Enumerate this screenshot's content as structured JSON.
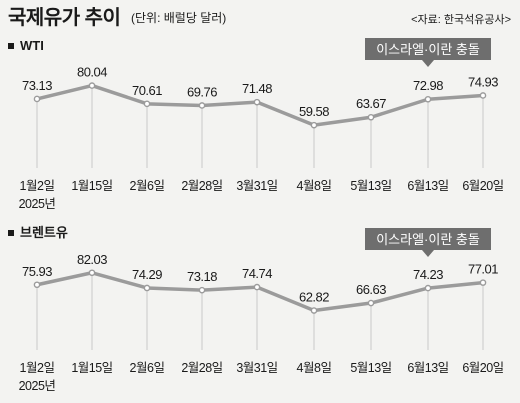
{
  "header": {
    "title": "국제유가 추이",
    "unit": "(단위: 배럴당 달러)",
    "source": "<자료: 한국석유공사>"
  },
  "chart_data": [
    {
      "type": "line",
      "title": "WTI",
      "categories": [
        "1월2일",
        "1월15일",
        "2월6일",
        "2월28일",
        "3월31일",
        "4월8일",
        "5월13일",
        "6월13일",
        "6월20일"
      ],
      "year_label": "2025년",
      "values": [
        73.13,
        80.04,
        70.61,
        69.76,
        71.48,
        59.58,
        63.67,
        72.98,
        74.93
      ],
      "value_labels": [
        "73.13",
        "80.04",
        "70.61",
        "69.76",
        "71.48",
        "59.58",
        "63.67",
        "72.98",
        "74.93"
      ],
      "ylim": [
        55,
        85
      ],
      "annotation": {
        "text": "이스라엘·이란 충돌",
        "category": "6월13일"
      },
      "series_color": "#9b9b9b",
      "drop_line_color": "#d6d6d6"
    },
    {
      "type": "line",
      "title": "브렌트유",
      "categories": [
        "1월2일",
        "1월15일",
        "2월6일",
        "2월28일",
        "3월31일",
        "4월8일",
        "5월13일",
        "6월13일",
        "6월20일"
      ],
      "year_label": "2025년",
      "values": [
        75.93,
        82.03,
        74.29,
        73.18,
        74.74,
        62.82,
        66.63,
        74.23,
        77.01
      ],
      "value_labels": [
        "75.93",
        "82.03",
        "74.29",
        "73.18",
        "74.74",
        "62.82",
        "66.63",
        "74.23",
        "77.01"
      ],
      "ylim": [
        58,
        87
      ],
      "annotation": {
        "text": "이스라엘·이란 충돌",
        "category": "6월13일"
      },
      "series_color": "#9b9b9b",
      "drop_line_color": "#d6d6d6"
    }
  ]
}
